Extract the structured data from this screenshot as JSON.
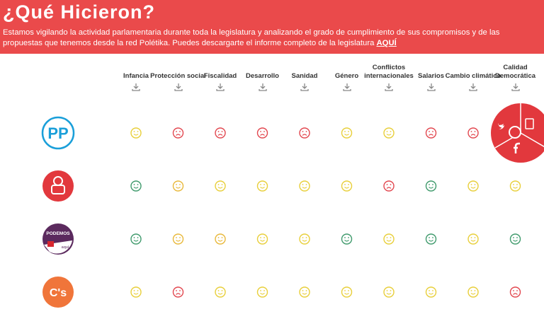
{
  "header": {
    "title": "¿Qué Hicieron?",
    "description": "Estamos vigilando la actividad parlamentaria durante toda la legislatura y analizando el grado de cumplimiento de sus compromisos y de las propuestas que tenemos desde la red Polétika. Puedes descargarte el informe completo de la legislatura",
    "link": "AQUÍ"
  },
  "table": {
    "columns": [
      "Infancia",
      "Protección social",
      "Fiscalidad",
      "Desarrollo",
      "Sanidad",
      "Género",
      "Conflictos internacionales",
      "Salarios",
      "Cambio climático",
      "Calidad Democrática"
    ],
    "rows": [
      {
        "logo": "PP",
        "faces": [
          "#e8cf3a",
          "#e2474f",
          "#e2474f",
          "#e2474f",
          "#e2474f",
          "#e8cf3a",
          "#e8cf3a",
          "#e2474f",
          "#e2474f",
          null
        ]
      },
      {
        "logo": "",
        "faces": [
          "#3f9a6c",
          "#e8b83a",
          "#e8cf3a",
          "#e8cf3a",
          "#e8cf3a",
          "#e8cf3a",
          "#e2474f",
          "#3f9a6c",
          "#e8cf3a",
          "#e8cf3a"
        ]
      },
      {
        "logo": "PODEMOS",
        "logo_sub": "aquí",
        "faces": [
          "#3f9a6c",
          "#e8b83a",
          "#e8b83a",
          "#e8cf3a",
          "#e8cf3a",
          "#3f9a6c",
          "#e8cf3a",
          "#3f9a6c",
          "#e8cf3a",
          "#3f9a6c"
        ]
      },
      {
        "logo": "C's",
        "faces": [
          "#e8cf3a",
          "#e2474f",
          "#e8cf3a",
          "#e8cf3a",
          "#e8cf3a",
          "#e8cf3a",
          "#e8cf3a",
          "#e8cf3a",
          "#e8cf3a",
          "#e2474f"
        ]
      }
    ]
  }
}
